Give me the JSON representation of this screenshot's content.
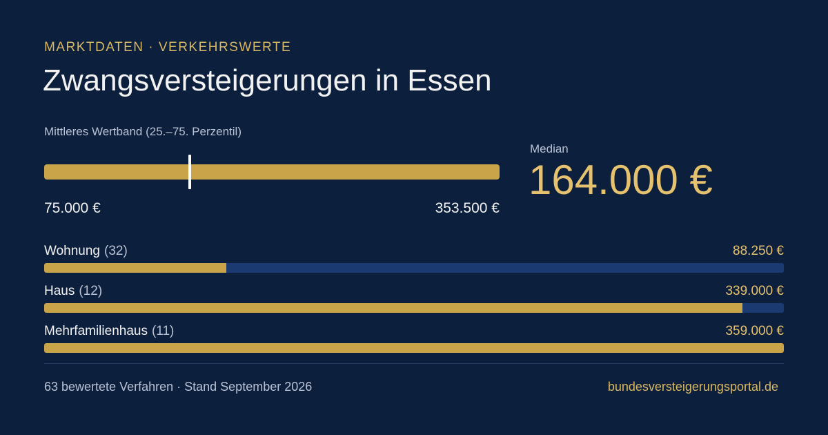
{
  "header": {
    "eyebrow": "MARKTDATEN · VERKEHRSWERTE",
    "title": "Zwangsversteigerungen in Essen"
  },
  "band": {
    "label": "Mittleres Wertband (25.–75. Perzentil)",
    "min_label": "75.000 €",
    "max_label": "353.500 €"
  },
  "median": {
    "label": "Median",
    "value_label": "164.000 €"
  },
  "footer": {
    "left": "63 bewertete Verfahren · Stand September 2026",
    "right": "bundesversteigerungsportal.de"
  },
  "colors": {
    "background": "#0c1f3d",
    "accent_gold": "#c9a449",
    "track_blue": "#1c3a72",
    "text_gold": "#e6c16e"
  },
  "chart_data": [
    {
      "type": "bar",
      "orientation": "horizontal",
      "title": "Mittleres Wertband (25.–75. Perzentil)",
      "range": [
        75000,
        353500
      ],
      "marker_value": 164000,
      "marker_label": "Median",
      "tick_labels": [
        "75.000 €",
        "353.500 €"
      ]
    },
    {
      "type": "bar",
      "orientation": "horizontal",
      "xlim": [
        0,
        359000
      ],
      "grid": false,
      "categories": [
        {
          "name": "Wohnung",
          "count": "(32)",
          "value": 88250,
          "value_label": "88.250 €"
        },
        {
          "name": "Haus",
          "count": "(12)",
          "value": 339000,
          "value_label": "339.000 €"
        },
        {
          "name": "Mehrfamilienhaus",
          "count": "(11)",
          "value": 359000,
          "value_label": "359.000 €"
        }
      ]
    }
  ]
}
